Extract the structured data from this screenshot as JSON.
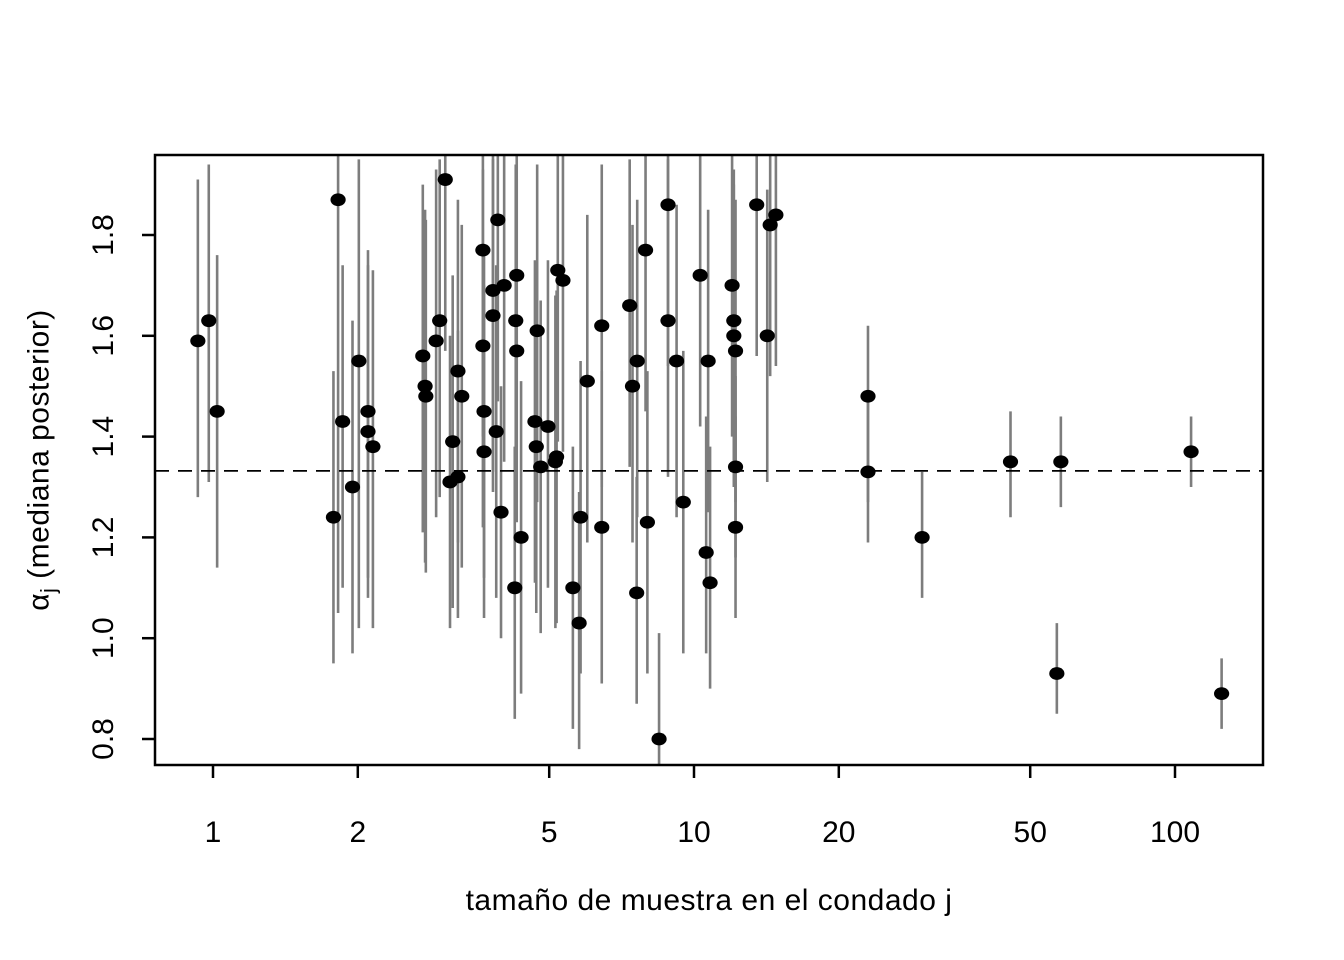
{
  "figure": {
    "background": "#ffffff",
    "xlabel": "tamaño de muestra en el condado j",
    "ylabel_alpha": "α",
    "ylabel_sub": "j",
    "ylabel_rest": " (mediana posterior)"
  },
  "chart_data": {
    "type": "scatter",
    "subtype": "points-with-vertical-error-bars",
    "title": "",
    "xlabel": "tamaño de muestra en el condado j",
    "ylabel": "alpha_j (mediana posterior)",
    "x_scale": "log10",
    "x_ticks": [
      1,
      2,
      5,
      10,
      20,
      50,
      100
    ],
    "y_ticks": [
      0.8,
      1.0,
      1.2,
      1.4,
      1.6,
      1.8
    ],
    "xlim": [
      0.76,
      152
    ],
    "ylim": [
      0.748,
      1.959
    ],
    "reference_line_y": 1.332,
    "reference_line_style": "dashed",
    "grid": false,
    "legend": "none",
    "point_color": "#000000",
    "bar_color": "#7d7d7d",
    "points": [
      {
        "n": 0.93,
        "med": 1.59,
        "lo": 1.28,
        "hi": 1.91
      },
      {
        "n": 0.98,
        "med": 1.63,
        "lo": 1.31,
        "hi": 1.94
      },
      {
        "n": 1.02,
        "med": 1.45,
        "lo": 1.14,
        "hi": 1.76
      },
      {
        "n": 1.82,
        "med": 1.87,
        "lo": 1.05,
        "hi": 1.96
      },
      {
        "n": 2.01,
        "med": 1.55,
        "lo": 1.02,
        "hi": 1.95
      },
      {
        "n": 1.86,
        "med": 1.43,
        "lo": 1.1,
        "hi": 1.74
      },
      {
        "n": 2.1,
        "med": 1.45,
        "lo": 1.12,
        "hi": 1.77
      },
      {
        "n": 2.1,
        "med": 1.41,
        "lo": 1.08,
        "hi": 1.74
      },
      {
        "n": 2.15,
        "med": 1.38,
        "lo": 1.02,
        "hi": 1.73
      },
      {
        "n": 1.95,
        "med": 1.3,
        "lo": 0.97,
        "hi": 1.63
      },
      {
        "n": 1.78,
        "med": 1.24,
        "lo": 0.95,
        "hi": 1.53
      },
      {
        "n": 3.04,
        "med": 1.91,
        "lo": 1.57,
        "hi": 1.96
      },
      {
        "n": 2.73,
        "med": 1.56,
        "lo": 1.21,
        "hi": 1.9
      },
      {
        "n": 2.76,
        "med": 1.5,
        "lo": 1.15,
        "hi": 1.85
      },
      {
        "n": 2.77,
        "med": 1.48,
        "lo": 1.13,
        "hi": 1.83
      },
      {
        "n": 2.96,
        "med": 1.63,
        "lo": 1.28,
        "hi": 1.95
      },
      {
        "n": 2.91,
        "med": 1.59,
        "lo": 1.24,
        "hi": 1.93
      },
      {
        "n": 3.23,
        "med": 1.53,
        "lo": 1.19,
        "hi": 1.87
      },
      {
        "n": 3.29,
        "med": 1.48,
        "lo": 1.14,
        "hi": 1.82
      },
      {
        "n": 3.11,
        "med": 1.31,
        "lo": 1.02,
        "hi": 1.6
      },
      {
        "n": 3.23,
        "med": 1.32,
        "lo": 1.04,
        "hi": 1.61
      },
      {
        "n": 3.15,
        "med": 1.39,
        "lo": 1.06,
        "hi": 1.72
      },
      {
        "n": 3.66,
        "med": 1.37,
        "lo": 1.04,
        "hi": 1.7
      },
      {
        "n": 3.66,
        "med": 1.45,
        "lo": 1.12,
        "hi": 1.78
      },
      {
        "n": 3.64,
        "med": 1.77,
        "lo": 1.4,
        "hi": 1.96
      },
      {
        "n": 3.91,
        "med": 1.83,
        "lo": 1.47,
        "hi": 1.96
      },
      {
        "n": 3.64,
        "med": 1.58,
        "lo": 1.22,
        "hi": 1.93
      },
      {
        "n": 3.82,
        "med": 1.69,
        "lo": 1.33,
        "hi": 1.96
      },
      {
        "n": 4.03,
        "med": 1.7,
        "lo": 1.35,
        "hi": 1.96
      },
      {
        "n": 3.82,
        "med": 1.64,
        "lo": 1.29,
        "hi": 1.95
      },
      {
        "n": 4.26,
        "med": 1.63,
        "lo": 1.29,
        "hi": 1.94
      },
      {
        "n": 4.28,
        "med": 1.72,
        "lo": 1.38,
        "hi": 1.96
      },
      {
        "n": 4.28,
        "med": 1.57,
        "lo": 1.23,
        "hi": 1.91
      },
      {
        "n": 3.88,
        "med": 1.41,
        "lo": 1.08,
        "hi": 1.74
      },
      {
        "n": 3.97,
        "med": 1.25,
        "lo": 1.0,
        "hi": 1.5
      },
      {
        "n": 4.37,
        "med": 1.2,
        "lo": 0.89,
        "hi": 1.51
      },
      {
        "n": 4.24,
        "med": 1.1,
        "lo": 0.84,
        "hi": 1.38
      },
      {
        "n": 4.72,
        "med": 1.61,
        "lo": 1.27,
        "hi": 1.94
      },
      {
        "n": 5.21,
        "med": 1.73,
        "lo": 1.39,
        "hi": 1.96
      },
      {
        "n": 5.34,
        "med": 1.71,
        "lo": 1.37,
        "hi": 1.96
      },
      {
        "n": 4.67,
        "med": 1.43,
        "lo": 1.11,
        "hi": 1.75
      },
      {
        "n": 4.97,
        "med": 1.42,
        "lo": 1.1,
        "hi": 1.75
      },
      {
        "n": 4.7,
        "med": 1.38,
        "lo": 1.05,
        "hi": 1.7
      },
      {
        "n": 5.18,
        "med": 1.36,
        "lo": 1.03,
        "hi": 1.69
      },
      {
        "n": 4.8,
        "med": 1.34,
        "lo": 1.01,
        "hi": 1.67
      },
      {
        "n": 5.15,
        "med": 1.35,
        "lo": 1.02,
        "hi": 1.68
      },
      {
        "n": 5.6,
        "med": 1.1,
        "lo": 0.82,
        "hi": 1.38
      },
      {
        "n": 5.77,
        "med": 1.03,
        "lo": 0.78,
        "hi": 1.29
      },
      {
        "n": 5.81,
        "med": 1.24,
        "lo": 0.93,
        "hi": 1.55
      },
      {
        "n": 6.43,
        "med": 1.22,
        "lo": 0.91,
        "hi": 1.53
      },
      {
        "n": 6.0,
        "med": 1.51,
        "lo": 1.19,
        "hi": 1.84
      },
      {
        "n": 6.43,
        "med": 1.62,
        "lo": 1.3,
        "hi": 1.94
      },
      {
        "n": 7.35,
        "med": 1.66,
        "lo": 1.34,
        "hi": 1.95
      },
      {
        "n": 7.93,
        "med": 1.77,
        "lo": 1.45,
        "hi": 1.96
      },
      {
        "n": 8.83,
        "med": 1.86,
        "lo": 1.54,
        "hi": 1.96
      },
      {
        "n": 7.62,
        "med": 1.55,
        "lo": 1.24,
        "hi": 1.87
      },
      {
        "n": 7.45,
        "med": 1.5,
        "lo": 1.19,
        "hi": 1.82
      },
      {
        "n": 9.2,
        "med": 1.55,
        "lo": 1.24,
        "hi": 1.86
      },
      {
        "n": 8.83,
        "med": 1.63,
        "lo": 1.32,
        "hi": 1.95
      },
      {
        "n": 8.0,
        "med": 1.23,
        "lo": 0.93,
        "hi": 1.53
      },
      {
        "n": 7.6,
        "med": 1.09,
        "lo": 0.87,
        "hi": 1.32
      },
      {
        "n": 8.46,
        "med": 0.8,
        "lo": 0.75,
        "hi": 1.01
      },
      {
        "n": 9.5,
        "med": 1.27,
        "lo": 0.97,
        "hi": 1.57
      },
      {
        "n": 10.3,
        "med": 1.72,
        "lo": 1.42,
        "hi": 1.96
      },
      {
        "n": 10.7,
        "med": 1.55,
        "lo": 1.25,
        "hi": 1.85
      },
      {
        "n": 12.0,
        "med": 1.7,
        "lo": 1.4,
        "hi": 1.96
      },
      {
        "n": 12.1,
        "med": 1.63,
        "lo": 1.34,
        "hi": 1.93
      },
      {
        "n": 12.1,
        "med": 1.6,
        "lo": 1.3,
        "hi": 1.9
      },
      {
        "n": 12.2,
        "med": 1.57,
        "lo": 1.27,
        "hi": 1.87
      },
      {
        "n": 14.2,
        "med": 1.6,
        "lo": 1.31,
        "hi": 1.89
      },
      {
        "n": 13.5,
        "med": 1.86,
        "lo": 1.56,
        "hi": 1.96
      },
      {
        "n": 14.8,
        "med": 1.84,
        "lo": 1.54,
        "hi": 1.96
      },
      {
        "n": 14.4,
        "med": 1.82,
        "lo": 1.52,
        "hi": 1.96
      },
      {
        "n": 12.2,
        "med": 1.34,
        "lo": 1.16,
        "hi": 1.52
      },
      {
        "n": 12.2,
        "med": 1.22,
        "lo": 1.04,
        "hi": 1.44
      },
      {
        "n": 10.6,
        "med": 1.17,
        "lo": 0.97,
        "hi": 1.44
      },
      {
        "n": 10.8,
        "med": 1.11,
        "lo": 0.9,
        "hi": 1.38
      },
      {
        "n": 23.0,
        "med": 1.48,
        "lo": 1.27,
        "hi": 1.62
      },
      {
        "n": 23.0,
        "med": 1.33,
        "lo": 1.19,
        "hi": 1.49
      },
      {
        "n": 29.8,
        "med": 1.2,
        "lo": 1.08,
        "hi": 1.33
      },
      {
        "n": 45.5,
        "med": 1.35,
        "lo": 1.24,
        "hi": 1.45
      },
      {
        "n": 57.9,
        "med": 1.35,
        "lo": 1.26,
        "hi": 1.44
      },
      {
        "n": 56.8,
        "med": 0.93,
        "lo": 0.85,
        "hi": 1.03
      },
      {
        "n": 108,
        "med": 1.37,
        "lo": 1.3,
        "hi": 1.44
      },
      {
        "n": 125,
        "med": 0.89,
        "lo": 0.82,
        "hi": 0.96
      }
    ]
  }
}
